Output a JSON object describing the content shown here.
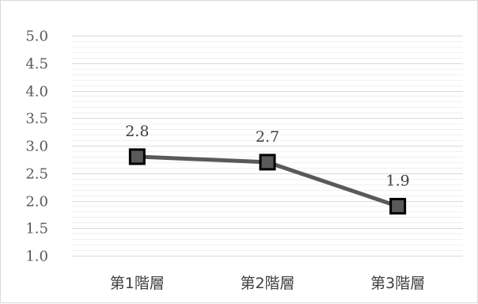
{
  "chart_data": {
    "type": "line",
    "title": "",
    "xlabel": "",
    "ylabel": "",
    "categories": [
      "第1階層",
      "第2階層",
      "第3階層"
    ],
    "series": [
      {
        "values": [
          2.8,
          2.7,
          1.9
        ]
      }
    ],
    "data_labels": [
      "2.8",
      "2.7",
      "1.9"
    ],
    "ylim": [
      1.0,
      5.0
    ],
    "yticks": [
      "1.0",
      "1.5",
      "2.0",
      "2.5",
      "3.0",
      "3.5",
      "4.0",
      "4.5",
      "5.0"
    ],
    "grid": true,
    "minor_grid": true,
    "legend": "none",
    "marker": "square",
    "colors": {
      "line": "#595959",
      "marker_fill": "#595959",
      "marker_stroke": "#000000",
      "major_grid": "#d9d9d9",
      "minor_grid": "#f0f0f0"
    }
  }
}
